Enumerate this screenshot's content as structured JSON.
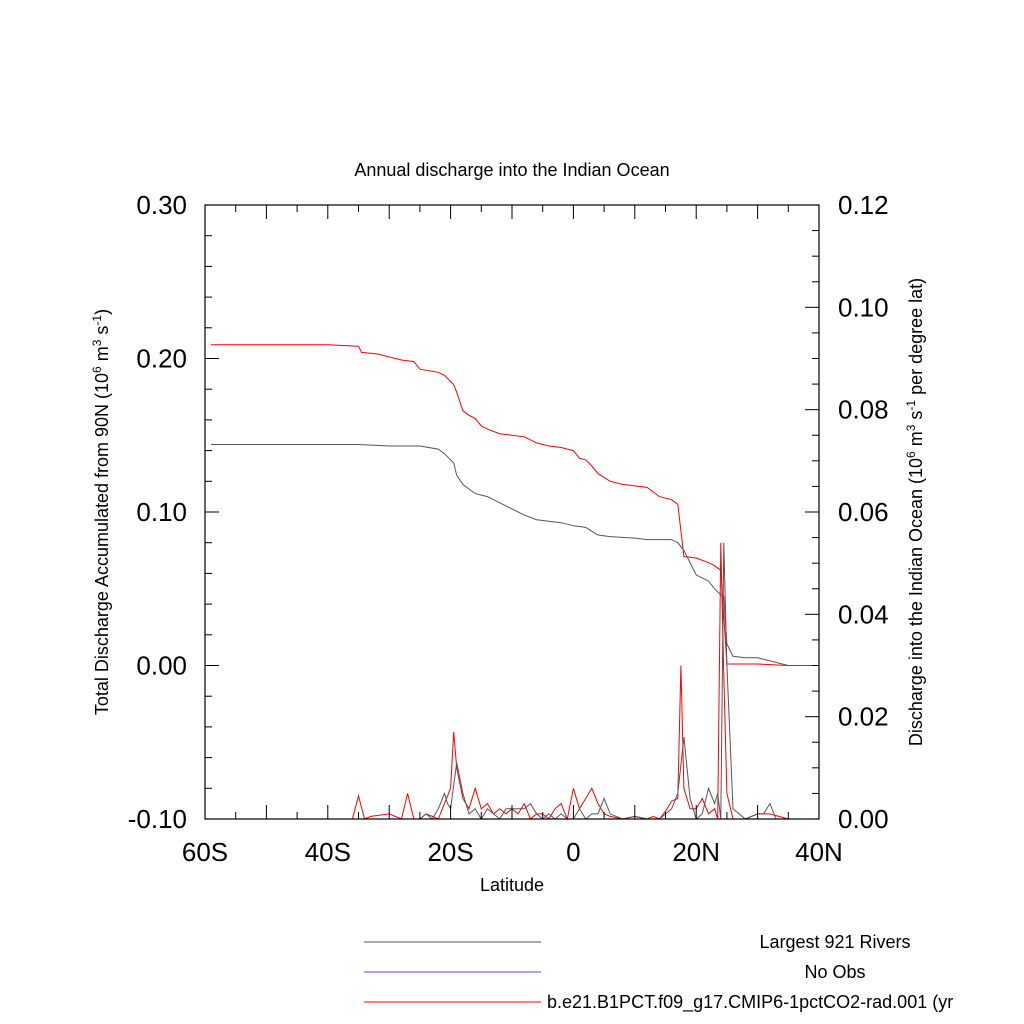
{
  "chart_data": {
    "type": "line",
    "title": "Annual discharge into the Indian Ocean",
    "xlabel": "Latitude",
    "ylabel_left": "Total Discharge Accumulated from 90N (10^6 m^3 s^-1)",
    "ylabel_right": "Discharge into the Indian Ocean (10^6 m^3 s^-1 per degree lat)",
    "xlim": [
      -60,
      40
    ],
    "ylim_left": [
      -0.1,
      0.3
    ],
    "ylim_right": [
      0.0,
      0.12
    ],
    "x_ticks": [
      {
        "value": -60,
        "label": "60S"
      },
      {
        "value": -40,
        "label": "40S"
      },
      {
        "value": -20,
        "label": "20S"
      },
      {
        "value": 0,
        "label": "0"
      },
      {
        "value": 20,
        "label": "20N"
      },
      {
        "value": 40,
        "label": "40N"
      }
    ],
    "y_left_ticks": [
      {
        "value": 0.3,
        "label": "0.30"
      },
      {
        "value": 0.2,
        "label": "0.20"
      },
      {
        "value": 0.1,
        "label": "0.10"
      },
      {
        "value": 0.0,
        "label": "0.00"
      },
      {
        "value": -0.1,
        "label": "-0.10"
      }
    ],
    "y_right_ticks": [
      {
        "value": 0.12,
        "label": "0.12"
      },
      {
        "value": 0.1,
        "label": "0.10"
      },
      {
        "value": 0.08,
        "label": "0.08"
      },
      {
        "value": 0.06,
        "label": "0.06"
      },
      {
        "value": 0.04,
        "label": "0.04"
      },
      {
        "value": 0.02,
        "label": "0.02"
      },
      {
        "value": 0.0,
        "label": "0.00"
      }
    ],
    "legend": [
      {
        "label": "Largest 921 Rivers",
        "color": "#555555"
      },
      {
        "label": "No Obs",
        "color": "#4a4af0"
      },
      {
        "label": "b.e21.B1PCT.f09_g17.CMIP6-1pctCO2-rad.001 (yr",
        "color": "#ff0000"
      }
    ],
    "series": [
      {
        "color": "#ff0000",
        "axis": "left",
        "x": [
          -59,
          -50,
          -40,
          -35,
          -34.5,
          -32,
          -28,
          -26,
          -25,
          -22,
          -21,
          -20,
          -19.5,
          -19,
          -18,
          -17,
          -16,
          -15,
          -14,
          -12,
          -10,
          -8,
          -6,
          -4,
          -2,
          -1,
          0,
          1,
          2,
          3,
          4,
          6,
          8,
          10,
          12,
          13,
          14,
          16,
          17,
          18,
          20,
          22,
          23,
          24,
          25,
          26,
          30,
          35,
          40
        ],
        "y": [
          0.209,
          0.209,
          0.209,
          0.208,
          0.204,
          0.203,
          0.199,
          0.198,
          0.193,
          0.191,
          0.189,
          0.185,
          0.183,
          0.178,
          0.166,
          0.163,
          0.161,
          0.156,
          0.154,
          0.151,
          0.15,
          0.149,
          0.145,
          0.143,
          0.142,
          0.141,
          0.14,
          0.135,
          0.134,
          0.13,
          0.125,
          0.12,
          0.118,
          0.117,
          0.116,
          0.113,
          0.11,
          0.108,
          0.105,
          0.071,
          0.07,
          0.067,
          0.065,
          0.062,
          0.001,
          0.001,
          0.001,
          0.0,
          0.0
        ]
      },
      {
        "color": "#555555",
        "axis": "left",
        "x": [
          -59,
          -50,
          -40,
          -35,
          -30,
          -25,
          -22,
          -21,
          -20,
          -19.5,
          -19,
          -18,
          -17,
          -16,
          -14,
          -12,
          -10,
          -8,
          -6,
          -4,
          -2,
          0,
          2,
          4,
          6,
          10,
          12,
          14,
          16,
          17,
          18,
          20,
          22,
          23,
          24,
          24.5,
          25,
          26,
          28,
          30,
          32,
          35,
          40
        ],
        "y": [
          0.144,
          0.144,
          0.144,
          0.144,
          0.143,
          0.143,
          0.141,
          0.138,
          0.134,
          0.132,
          0.124,
          0.118,
          0.115,
          0.112,
          0.11,
          0.106,
          0.102,
          0.098,
          0.095,
          0.094,
          0.093,
          0.091,
          0.09,
          0.085,
          0.084,
          0.083,
          0.082,
          0.082,
          0.082,
          0.08,
          0.075,
          0.059,
          0.055,
          0.05,
          0.046,
          0.045,
          0.014,
          0.006,
          0.005,
          0.005,
          0.003,
          0.0,
          0.0
        ]
      },
      {
        "color": "#ff0000",
        "axis": "right",
        "x": [
          -60,
          -38,
          -36,
          -35,
          -34,
          -33,
          -30,
          -28,
          -27,
          -26,
          -25,
          -24,
          -23,
          -22,
          -21,
          -20,
          -19.5,
          -19,
          -18,
          -17,
          -16,
          -15,
          -14,
          -13,
          -12,
          -11,
          -10,
          -9,
          -8,
          -7,
          -6,
          -5,
          -4,
          -3,
          -2,
          -1,
          0,
          1,
          2,
          3,
          4,
          5,
          6,
          8,
          10,
          12,
          13,
          14,
          15,
          16,
          17,
          17.5,
          18,
          19,
          20,
          21,
          22,
          23,
          23.5,
          24,
          24.5,
          25,
          26,
          28,
          30,
          32,
          35,
          40
        ],
        "y": [
          0,
          0,
          0,
          0.0045,
          0,
          0.0005,
          0.001,
          0,
          0.005,
          0,
          0,
          0.001,
          0.0005,
          0,
          0.003,
          0.006,
          0.017,
          0.01,
          0.004,
          0.002,
          0.006,
          0.002,
          0.003,
          0.001,
          0.002,
          0.001,
          0.002,
          0.001,
          0.003,
          0,
          0.001,
          0.001,
          0,
          0.002,
          0.003,
          0,
          0.006,
          0.002,
          0.004,
          0.006,
          0.003,
          0.001,
          0.0005,
          0,
          0.0005,
          0,
          0.0005,
          0,
          0.0015,
          0.0035,
          0.004,
          0.03,
          0.006,
          0.002,
          0.002,
          0.004,
          0.001,
          0.002,
          0,
          0.054,
          0.028,
          0.005,
          0,
          0,
          0.001,
          0.001,
          0,
          0
        ]
      },
      {
        "color": "#555555",
        "axis": "right",
        "x": [
          -60,
          -30,
          -25,
          -24,
          -23,
          -22,
          -21,
          -20.5,
          -20,
          -19,
          -18,
          -17,
          -16,
          -15,
          -14,
          -13,
          -12,
          -11,
          -10,
          -9,
          -8,
          -7,
          -6,
          -5,
          -4,
          -3,
          -2,
          -1,
          0,
          1,
          2,
          3,
          4,
          5,
          6,
          8,
          10,
          12,
          14,
          15,
          16,
          17,
          18,
          19,
          20,
          21,
          22,
          23,
          23.5,
          24,
          24.5,
          25,
          26,
          28,
          30,
          31,
          32,
          33,
          35,
          40
        ],
        "y": [
          0,
          0,
          0,
          0.001,
          0,
          0.002,
          0.005,
          0.003,
          0.002,
          0.011,
          0.005,
          0.001,
          0.002,
          0,
          0.002,
          0.001,
          0,
          0.002,
          0.002,
          0.002,
          0.002,
          0.003,
          0.001,
          0,
          0.001,
          0,
          0.001,
          0,
          0,
          0.002,
          0,
          0.001,
          0.001,
          0.004,
          0.001,
          0,
          0.0005,
          0,
          0,
          0.001,
          0.002,
          0.005,
          0.016,
          0.004,
          0,
          0.001,
          0.006,
          0.003,
          0.005,
          0,
          0.054,
          0.03,
          0.002,
          0,
          0.001,
          0.001,
          0.003,
          0,
          0,
          0
        ]
      }
    ]
  }
}
